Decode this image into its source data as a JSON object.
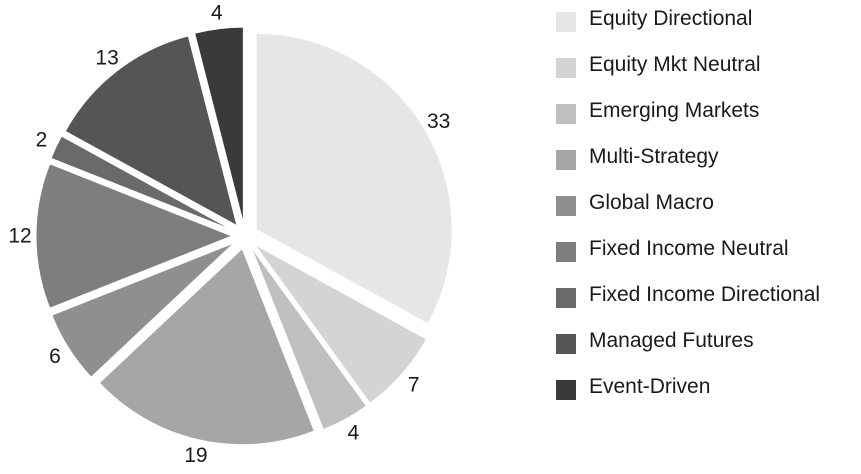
{
  "chart_data": {
    "type": "pie",
    "title": "",
    "legend_position": "right",
    "slices": [
      {
        "label": "Equity Directional",
        "value": 33,
        "color": "#e6e6e6"
      },
      {
        "label": "Equity Mkt Neutral",
        "value": 7,
        "color": "#d4d4d4"
      },
      {
        "label": "Emerging Markets",
        "value": 4,
        "color": "#bfbfbf"
      },
      {
        "label": "Multi-Strategy",
        "value": 19,
        "color": "#a6a6a6"
      },
      {
        "label": "Global Macro",
        "value": 6,
        "color": "#8f8f8f"
      },
      {
        "label": "Fixed Income Neutral",
        "value": 12,
        "color": "#7e7e7e"
      },
      {
        "label": "Fixed Income Directional",
        "value": 2,
        "color": "#6a6a6a"
      },
      {
        "label": "Managed Futures",
        "value": 13,
        "color": "#555555"
      },
      {
        "label": "Event-Driven",
        "value": 4,
        "color": "#3a3a3a"
      }
    ]
  }
}
